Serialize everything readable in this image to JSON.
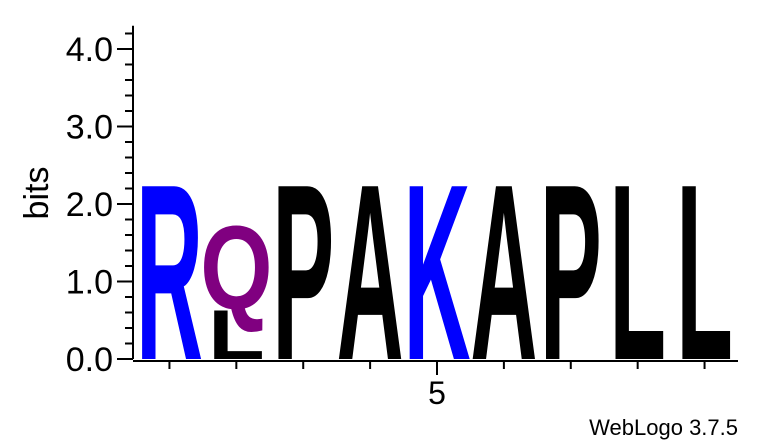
{
  "chart_data": {
    "type": "sequence-logo",
    "ylabel": "bits",
    "ylim": [
      0,
      4.3
    ],
    "yticks": [
      "0.0",
      "1.0",
      "2.0",
      "3.0",
      "4.0"
    ],
    "xtick_labels": [
      {
        "position": 5,
        "label": "5"
      }
    ],
    "footer": "WebLogo 3.7.5",
    "colors": {
      "R": "#0000ff",
      "K": "#0000ff",
      "Q": "#800080",
      "L": "#000000",
      "P": "#000000",
      "A": "#000000"
    },
    "positions": [
      {
        "position": 1,
        "letters": [
          {
            "letter": "R",
            "bits": 2.32
          }
        ]
      },
      {
        "position": 2,
        "letters": [
          {
            "letter": "L",
            "bits": 0.65
          },
          {
            "letter": "Q",
            "bits": 1.1
          }
        ]
      },
      {
        "position": 3,
        "letters": [
          {
            "letter": "P",
            "bits": 2.32
          }
        ]
      },
      {
        "position": 4,
        "letters": [
          {
            "letter": "A",
            "bits": 2.32
          }
        ]
      },
      {
        "position": 5,
        "letters": [
          {
            "letter": "K",
            "bits": 2.32
          }
        ]
      },
      {
        "position": 6,
        "letters": [
          {
            "letter": "A",
            "bits": 2.32
          }
        ]
      },
      {
        "position": 7,
        "letters": [
          {
            "letter": "P",
            "bits": 2.32
          }
        ]
      },
      {
        "position": 8,
        "letters": [
          {
            "letter": "L",
            "bits": 2.32
          }
        ]
      },
      {
        "position": 9,
        "letters": [
          {
            "letter": "L",
            "bits": 2.32
          }
        ]
      }
    ]
  }
}
